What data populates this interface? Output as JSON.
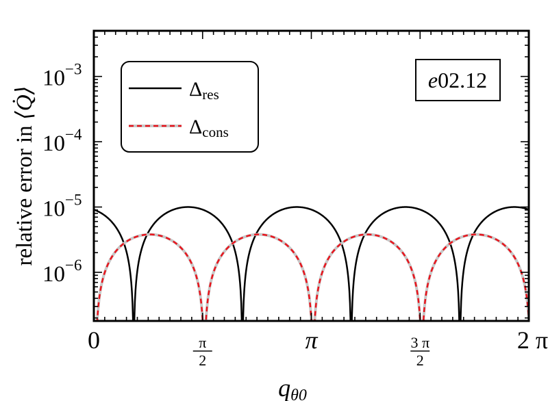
{
  "chart_data": {
    "type": "line",
    "title": "",
    "ylabel_prefix": "relative error in ",
    "ylabel_symbol": "⟨Q̇⟩",
    "xlabel_main": "q",
    "xlabel_sub": "θ0",
    "yscale": "log",
    "xlim": [
      0,
      6.283185
    ],
    "ylim": [
      1.8e-07,
      0.005
    ],
    "y_ticks": [
      {
        "value": 1e-06,
        "base": "10",
        "exp": "−6"
      },
      {
        "value": 1e-05,
        "base": "10",
        "exp": "−5"
      },
      {
        "value": 0.0001,
        "base": "10",
        "exp": "−4"
      },
      {
        "value": 0.001,
        "base": "10",
        "exp": "−3"
      }
    ],
    "x_ticks": [
      {
        "value": 0,
        "label": "0",
        "kind": "text"
      },
      {
        "value": 1.570796,
        "num": "π",
        "den": "2",
        "kind": "frac"
      },
      {
        "value": 3.141593,
        "label": "π",
        "kind": "italic"
      },
      {
        "value": 4.712389,
        "num": "3 π",
        "den": "2",
        "kind": "frac"
      },
      {
        "value": 6.283185,
        "label": "2 π",
        "kind": "text"
      }
    ],
    "annotation": {
      "italic": "e",
      "rest": "02.12"
    },
    "legend": {
      "placement": "top-left"
    },
    "series": [
      {
        "name": "Δ",
        "sub": "res",
        "color": "#000000",
        "style": "solid",
        "formula": "1.0e-5 * |cos(2x + 0.42)|",
        "points": 720
      },
      {
        "name": "Δ",
        "sub": "cons",
        "color": "#e8141c",
        "style": "dashed",
        "underlay_color": "#c8c8c8",
        "formula": "3.8e-6 * |sin(2x - 0.05)|",
        "points": 720
      }
    ]
  }
}
